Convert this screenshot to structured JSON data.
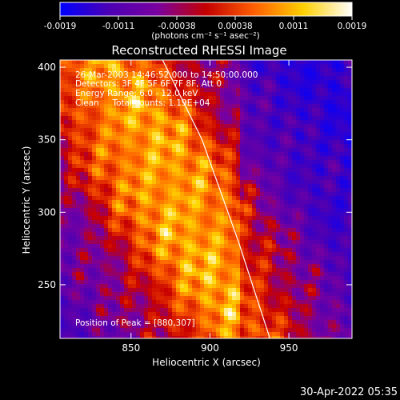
{
  "chart_data": {
    "type": "heatmap",
    "title": "Reconstructed RHESSI Image",
    "xlabel": "Heliocentric X (arcsec)",
    "ylabel": "Heliocentric Y (arcsec)",
    "xlim": [
      805,
      990
    ],
    "ylim": [
      213,
      405
    ],
    "x_ticks": [
      850,
      900,
      950
    ],
    "y_ticks": [
      250,
      300,
      350,
      400
    ],
    "colorbar": {
      "unit_label": "(photons cm⁻² s⁻¹ asec⁻²)",
      "range": [
        -0.0019,
        0.0019
      ],
      "tick_labels": [
        "-0.0019",
        "-0.0011",
        "-0.00038",
        "0.00038",
        "0.0011",
        "0.0019"
      ],
      "colors": [
        "#0000ff",
        "#4b00b4",
        "#7a00a0",
        "#c40000",
        "#ff6000",
        "#ffd000",
        "#ffffff"
      ]
    },
    "annotations": [
      "26-Mar-2003 14:46:52.000 to 14:50:00.000",
      "Detectors: 3F 4F 5F 6F 7F 8F, Att 0",
      "Energy Range: 6.0 - 12.0 keV",
      "Clean     Total counts: 1.19E+04"
    ],
    "peak_label": "Position of Peak = [880,307]",
    "peak": [
      880,
      307
    ],
    "limb_curve": {
      "x": [
        870,
        895,
        918,
        938
      ],
      "y": [
        405,
        350,
        280,
        213
      ]
    }
  },
  "footer": {
    "timestamp": "30-Apr-2022 05:35"
  }
}
